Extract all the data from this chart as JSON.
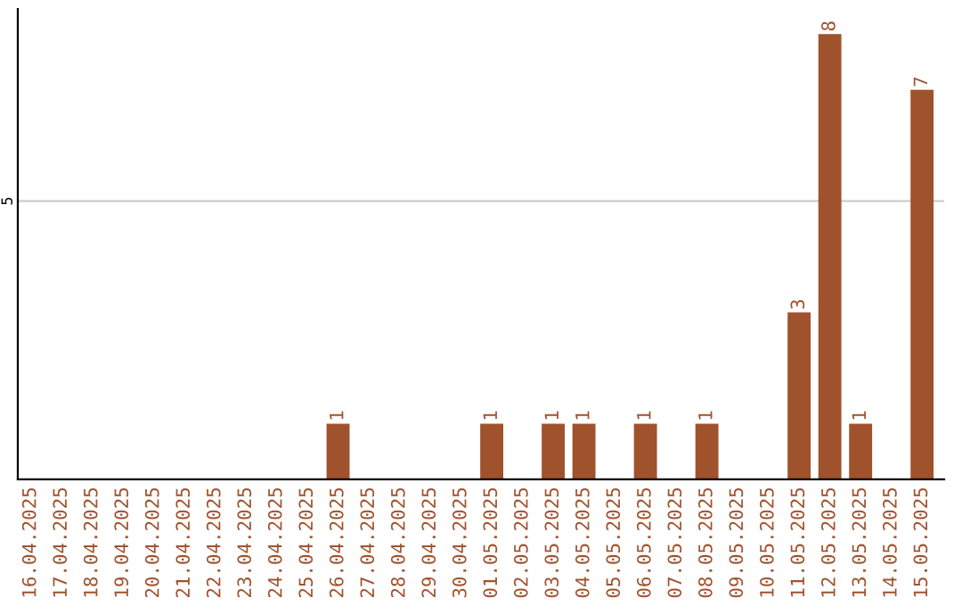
{
  "chart_data": {
    "type": "bar",
    "categories": [
      "16.04.2025",
      "17.04.2025",
      "18.04.2025",
      "19.04.2025",
      "20.04.2025",
      "21.04.2025",
      "22.04.2025",
      "23.04.2025",
      "24.04.2025",
      "25.04.2025",
      "26.04.2025",
      "27.04.2025",
      "28.04.2025",
      "29.04.2025",
      "30.04.2025",
      "01.05.2025",
      "02.05.2025",
      "03.05.2025",
      "04.05.2025",
      "05.05.2025",
      "06.05.2025",
      "07.05.2025",
      "08.05.2025",
      "09.05.2025",
      "10.05.2025",
      "11.05.2025",
      "12.05.2025",
      "13.05.2025",
      "14.05.2025",
      "15.05.2025"
    ],
    "values": [
      0,
      0,
      0,
      0,
      0,
      0,
      0,
      0,
      0,
      0,
      1,
      0,
      0,
      0,
      0,
      1,
      0,
      1,
      1,
      0,
      1,
      0,
      1,
      0,
      0,
      3,
      8,
      1,
      0,
      7
    ],
    "value_labels": [
      null,
      null,
      null,
      null,
      null,
      null,
      null,
      null,
      null,
      null,
      "1",
      null,
      null,
      null,
      null,
      "1",
      null,
      "1",
      "1",
      null,
      "1",
      null,
      "1",
      null,
      null,
      "3",
      "8",
      "1",
      null,
      "7"
    ],
    "color": "#a0522d",
    "ylim": [
      0,
      8.45
    ],
    "yticks": [
      5
    ],
    "grid": "y",
    "legend": false
  }
}
